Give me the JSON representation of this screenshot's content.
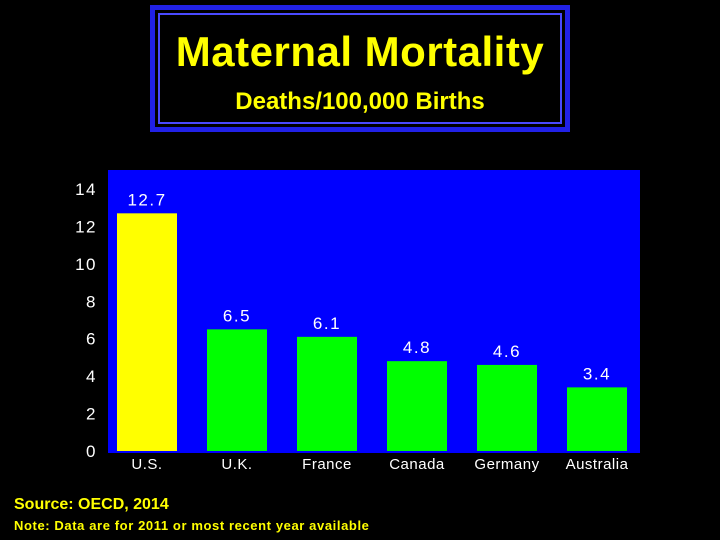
{
  "chart_data": {
    "type": "bar",
    "title": "Maternal Mortality",
    "subtitle": "Deaths/100,000 Births",
    "categories": [
      "U.S.",
      "U.K.",
      "France",
      "Canada",
      "Germany",
      "Australia"
    ],
    "values": [
      12.7,
      6.5,
      6.1,
      4.8,
      4.6,
      3.4
    ],
    "value_labels": [
      "12.7",
      "6.5",
      "6.1",
      "4.8",
      "4.6",
      "3.4"
    ],
    "bar_colors": [
      "#ffff00",
      "#00ff00",
      "#00ff00",
      "#00ff00",
      "#00ff00",
      "#00ff00"
    ],
    "ylim": [
      0,
      14
    ],
    "yticks": [
      0,
      2,
      4,
      6,
      8,
      10,
      12,
      14
    ],
    "xlabel": "",
    "ylabel": "",
    "grid": false,
    "plot_background": "#0000ff",
    "text_color": "#ffffff"
  },
  "footer": {
    "source": "Source: OECD, 2014",
    "note": "Note: Data are for 2011 or most recent year available"
  },
  "colors": {
    "background": "#000000",
    "title_text": "#ffff00",
    "title_border": "#2121e6"
  }
}
